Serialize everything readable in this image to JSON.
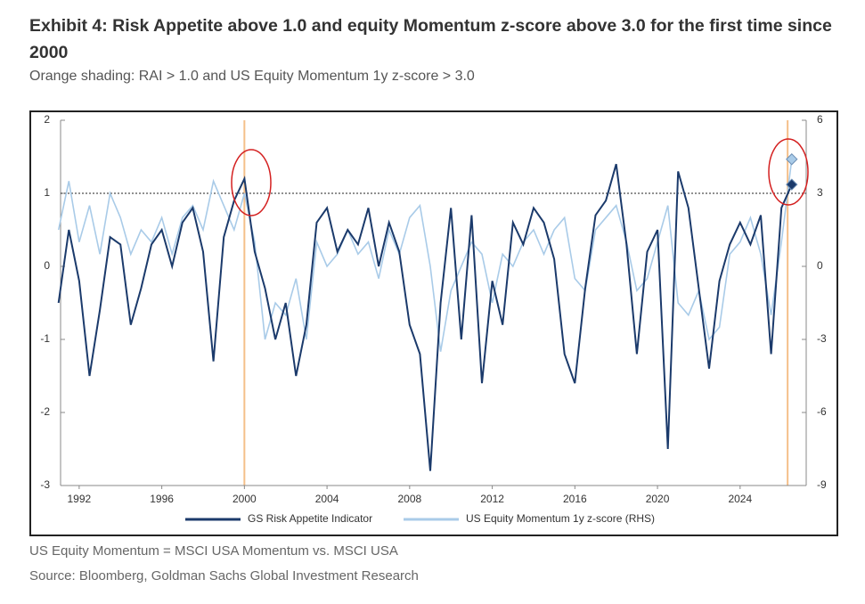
{
  "chart_data": {
    "type": "line",
    "title": "Exhibit 4: Risk Appetite above 1.0 and equity Momentum z-score above 3.0 for the first time since 2000",
    "subtitle": "Orange shading: RAI > 1.0 and US Equity Momentum 1y z-score > 3.0",
    "x": [
      1991.0,
      1991.5,
      1992.0,
      1992.5,
      1993.0,
      1993.5,
      1994.0,
      1994.5,
      1995.0,
      1995.5,
      1996.0,
      1996.5,
      1997.0,
      1997.5,
      1998.0,
      1998.5,
      1999.0,
      1999.5,
      2000.0,
      2000.5,
      2001.0,
      2001.5,
      2002.0,
      2002.5,
      2003.0,
      2003.5,
      2004.0,
      2004.5,
      2005.0,
      2005.5,
      2006.0,
      2006.5,
      2007.0,
      2007.5,
      2008.0,
      2008.5,
      2009.0,
      2009.5,
      2010.0,
      2010.5,
      2011.0,
      2011.5,
      2012.0,
      2012.5,
      2013.0,
      2013.5,
      2014.0,
      2014.5,
      2015.0,
      2015.5,
      2016.0,
      2016.5,
      2017.0,
      2017.5,
      2018.0,
      2018.5,
      2019.0,
      2019.5,
      2020.0,
      2020.5,
      2021.0,
      2021.5,
      2022.0,
      2022.5,
      2023.0,
      2023.5,
      2024.0,
      2024.5,
      2025.0,
      2025.5,
      2026.0,
      2026.5
    ],
    "series": [
      {
        "name": "GS Risk Appetite Indicator",
        "color": "#1b3a6b",
        "values": [
          -0.5,
          0.5,
          -0.2,
          -1.5,
          -0.6,
          0.4,
          0.3,
          -0.8,
          -0.3,
          0.3,
          0.5,
          0.0,
          0.6,
          0.8,
          0.2,
          -1.3,
          0.4,
          0.9,
          1.2,
          0.2,
          -0.3,
          -1.0,
          -0.5,
          -1.5,
          -0.8,
          0.6,
          0.8,
          0.2,
          0.5,
          0.3,
          0.8,
          0.0,
          0.6,
          0.2,
          -0.8,
          -1.2,
          -2.8,
          -0.5,
          0.8,
          -1.0,
          0.7,
          -1.6,
          -0.2,
          -0.8,
          0.6,
          0.3,
          0.8,
          0.6,
          0.1,
          -1.2,
          -1.6,
          -0.3,
          0.7,
          0.9,
          1.4,
          0.3,
          -1.2,
          0.2,
          0.5,
          -2.5,
          1.3,
          0.8,
          -0.3,
          -1.4,
          -0.2,
          0.3,
          0.6,
          0.3,
          0.7,
          -1.2,
          0.8,
          1.12
        ]
      },
      {
        "name": "US Equity Momentum 1y z-score (RHS)",
        "color": "#a9cbe8",
        "axis": "y2",
        "values": [
          1.5,
          3.5,
          1.0,
          2.5,
          0.5,
          3.0,
          2.0,
          0.5,
          1.5,
          1.0,
          2.0,
          0.5,
          2.0,
          2.5,
          1.5,
          3.5,
          2.5,
          1.5,
          3.0,
          1.0,
          -3.0,
          -1.5,
          -2.0,
          -0.5,
          -3.0,
          1.0,
          0.0,
          0.5,
          1.5,
          0.5,
          1.0,
          -0.5,
          1.5,
          0.5,
          2.0,
          2.5,
          0.0,
          -3.5,
          -1.0,
          0.0,
          1.0,
          0.5,
          -1.5,
          0.5,
          0.0,
          1.0,
          1.5,
          0.5,
          1.5,
          2.0,
          -0.5,
          -1.0,
          1.5,
          2.0,
          2.5,
          1.0,
          -1.0,
          -0.5,
          1.0,
          2.5,
          -1.5,
          -2.0,
          -1.0,
          -3.0,
          -2.5,
          0.5,
          1.0,
          2.0,
          0.5,
          -2.0,
          1.0,
          4.4
        ]
      }
    ],
    "xlim": [
      1991.1,
      2027.2
    ],
    "xticks": [
      1992,
      1996,
      2000,
      2004,
      2008,
      2012,
      2016,
      2020,
      2024
    ],
    "ylim": [
      -3,
      2
    ],
    "yticks": [
      2,
      1,
      0,
      -1,
      -2,
      -3
    ],
    "y2lim": [
      -9,
      6
    ],
    "y2ticks": [
      6,
      3,
      0,
      -3,
      -6,
      -9
    ],
    "reference_line": 1,
    "shaded_x": [
      2000.0,
      2026.3
    ],
    "shade_color": "#f5c08a",
    "end_marker": "diamond",
    "legend": "bottom"
  },
  "notes": [
    "US Equity Momentum = MSCI USA Momentum vs. MSCI USA",
    "Source: Bloomberg, Goldman Sachs Global Investment Research"
  ]
}
